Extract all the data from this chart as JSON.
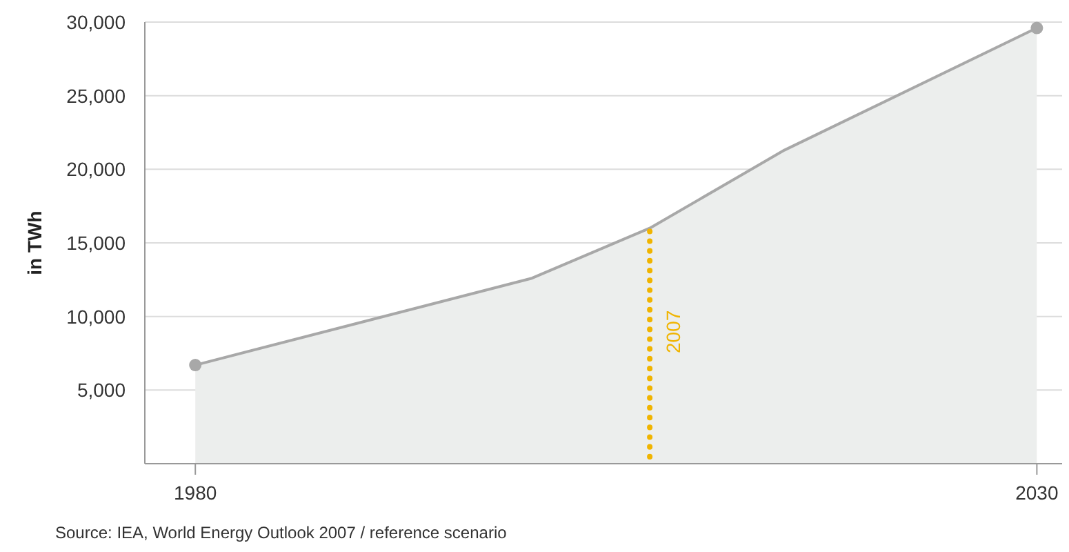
{
  "chart_data": {
    "type": "area",
    "ylabel": "in TWh",
    "x": [
      1980,
      2000,
      2007,
      2015,
      2030
    ],
    "series": [
      {
        "color": "#a8a8a8",
        "values": [
          6700,
          12600,
          16000,
          21300,
          29600
        ]
      },
      {
        "type": "scatter",
        "color": "#a8a8a8",
        "x": [
          1980,
          2030
        ],
        "values": [
          6700,
          29600
        ],
        "marker": "circle"
      }
    ],
    "xlim": [
      1977,
      2031.5
    ],
    "ylim": [
      0,
      30000
    ],
    "xticks": [
      1980,
      2030
    ],
    "yticks": [
      {
        "value": 5000,
        "label": "5,000"
      },
      {
        "value": 10000,
        "label": "10,000"
      },
      {
        "value": 15000,
        "label": "15,000"
      },
      {
        "value": 20000,
        "label": "20,000"
      },
      {
        "value": 25000,
        "label": "25,000"
      },
      {
        "value": 30000,
        "label": "30,000"
      }
    ],
    "grid": "y",
    "ref_lines": [
      {
        "axis": "x",
        "value": 2007,
        "label": "2007",
        "color": "#f0b400",
        "line_style": "dotted"
      }
    ],
    "annotations": [
      "Source: IEA, World Energy Outlook 2007 / reference scenario"
    ]
  }
}
